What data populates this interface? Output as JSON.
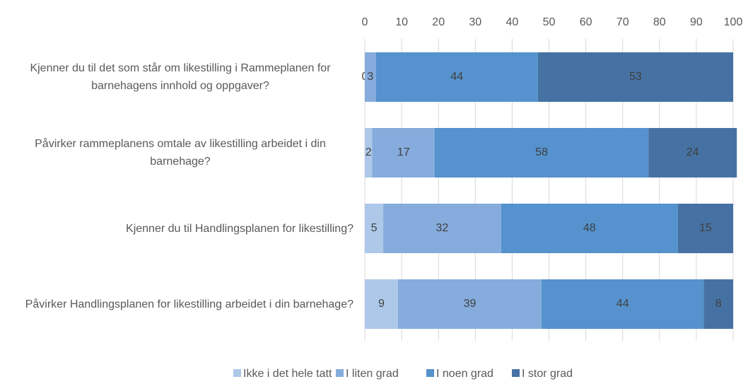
{
  "chart_data": {
    "type": "stacked_barh",
    "categories": [
      "Kjenner du til det som står om likestilling i Rammeplanen for barnehagens innhold og oppgaver?",
      "Påvirker rammeplanens omtale av likestilling arbeidet i din barnehage?",
      "Kjenner du til Handlingsplanen for likestilling?",
      "Påvirker Handlingsplanen for likestilling arbeidet i din barnehage?"
    ],
    "series": [
      {
        "name": "Ikke i det hele tatt",
        "color": "#adc8e8",
        "values": [
          0,
          2,
          5,
          9
        ]
      },
      {
        "name": "I liten grad",
        "color": "#85acdc",
        "values": [
          3,
          17,
          32,
          39
        ]
      },
      {
        "name": "I noen grad",
        "color": "#5592ce",
        "values": [
          44,
          58,
          48,
          44
        ]
      },
      {
        "name": "I stor grad",
        "color": "#4672a3",
        "values": [
          53,
          24,
          15,
          8
        ]
      }
    ],
    "xlim": [
      0,
      100
    ],
    "xticks": [
      0,
      10,
      20,
      30,
      40,
      50,
      60,
      70,
      80,
      90,
      100
    ],
    "grid": true,
    "legend": "bottom"
  }
}
